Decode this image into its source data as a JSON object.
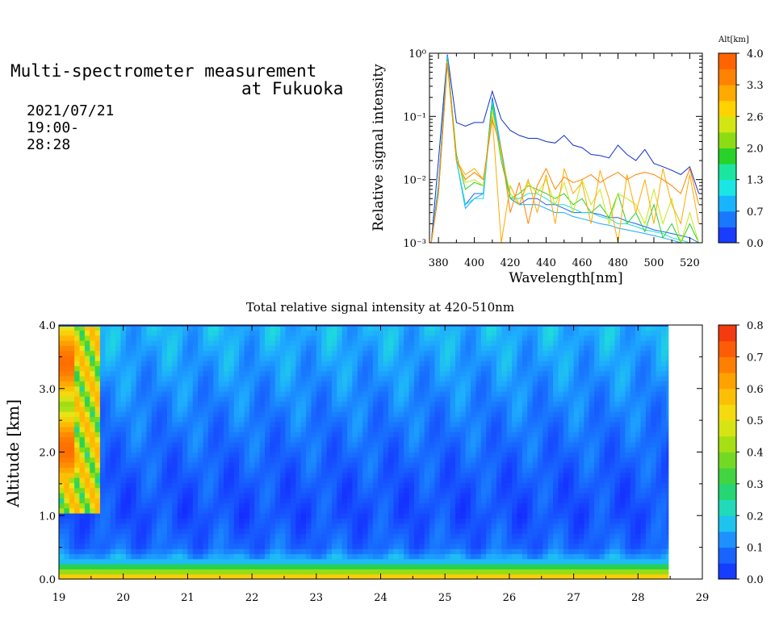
{
  "header": {
    "title_line1": "Multi-spectrometer measurement",
    "title_line2": "at Fukuoka",
    "timestamp": "2021/07/21 19:00-28:28"
  },
  "chart_data": [
    {
      "type": "line",
      "title": "",
      "xlabel": "Wavelength[nm]",
      "ylabel": "Relative signal intensity",
      "xlim": [
        375,
        527
      ],
      "ylim": [
        0.001,
        1
      ],
      "yscale": "log",
      "x_ticks": [
        "380",
        "400",
        "420",
        "440",
        "460",
        "480",
        "500",
        "520"
      ],
      "y_ticks": [
        "10⁻³",
        "10⁻²",
        "10⁻¹",
        "10⁰"
      ],
      "grid": false,
      "colorbar": {
        "title": "Alt[km]",
        "ticks": [
          "0.0",
          "0.7",
          "1.3",
          "2.0",
          "2.6",
          "3.3",
          "4.0"
        ],
        "colors": [
          "#1a3cff",
          "#1a78ff",
          "#19b4ff",
          "#1ae6e6",
          "#1ae6a0",
          "#28d228",
          "#8cdc14",
          "#d2e614",
          "#ffd200",
          "#ffaa00",
          "#ff8200",
          "#ff6400"
        ]
      },
      "x": [
        376,
        380,
        385,
        390,
        395,
        400,
        405,
        410,
        415,
        420,
        425,
        430,
        435,
        440,
        445,
        450,
        455,
        460,
        465,
        470,
        475,
        480,
        485,
        490,
        495,
        500,
        505,
        510,
        515,
        520,
        525
      ],
      "series": [
        {
          "color": "#1030c8",
          "values": [
            0.001,
            0.02,
            0.95,
            0.08,
            0.07,
            0.08,
            0.08,
            0.25,
            0.09,
            0.06,
            0.05,
            0.045,
            0.045,
            0.04,
            0.038,
            0.05,
            0.035,
            0.032,
            0.025,
            0.024,
            0.022,
            0.035,
            0.025,
            0.02,
            0.03,
            0.018,
            0.016,
            0.014,
            0.012,
            0.016,
            0.006
          ]
        },
        {
          "color": "#1a60ff",
          "values": [
            0.001,
            0.008,
            0.95,
            0.02,
            0.004,
            0.006,
            0.006,
            0.2,
            0.03,
            0.005,
            0.004,
            0.005,
            0.005,
            0.004,
            0.004,
            0.0035,
            0.003,
            0.003,
            0.003,
            0.0028,
            0.0025,
            0.0025,
            0.0022,
            0.002,
            0.0018,
            0.0016,
            0.0015,
            0.0014,
            0.0013,
            0.0012,
            0.001
          ]
        },
        {
          "color": "#19a8ff",
          "values": [
            0.001,
            0.008,
            0.9,
            0.02,
            0.0035,
            0.005,
            0.006,
            0.18,
            0.025,
            0.005,
            0.004,
            0.004,
            0.004,
            0.0035,
            0.003,
            0.003,
            0.0026,
            0.0024,
            0.0022,
            0.002,
            0.0019,
            0.0017,
            0.0016,
            0.0015,
            0.0014,
            0.0013,
            0.0012,
            0.0011,
            0.001,
            0.001,
            0.001
          ]
        },
        {
          "color": "#1ae0e0",
          "values": [
            0.001,
            0.007,
            0.85,
            0.02,
            0.004,
            0.005,
            0.005,
            0.17,
            0.03,
            0.005,
            0.005,
            0.006,
            0.006,
            0.005,
            0.004,
            0.004,
            0.0035,
            0.003,
            0.003,
            0.0026,
            0.0024,
            0.002,
            0.002,
            0.0018,
            0.0016,
            0.0015,
            0.0014,
            0.0012,
            0.0011,
            0.001,
            0.001
          ]
        },
        {
          "color": "#28d228",
          "values": [
            0.001,
            0.006,
            0.8,
            0.025,
            0.007,
            0.009,
            0.008,
            0.15,
            0.02,
            0.005,
            0.006,
            0.008,
            0.007,
            0.006,
            0.005,
            0.006,
            0.004,
            0.005,
            0.003,
            0.004,
            0.0025,
            0.006,
            0.002,
            0.003,
            0.0015,
            0.004,
            0.0012,
            0.002,
            0.001,
            0.002,
            0.001
          ]
        },
        {
          "color": "#c8e614",
          "values": [
            0.001,
            0.006,
            0.75,
            0.02,
            0.009,
            0.01,
            0.008,
            0.12,
            0.025,
            0.006,
            0.004,
            0.009,
            0.006,
            0.01,
            0.004,
            0.009,
            0.003,
            0.01,
            0.004,
            0.007,
            0.002,
            0.006,
            0.005,
            0.004,
            0.002,
            0.007,
            0.002,
            0.005,
            0.001,
            0.003,
            0.001
          ]
        },
        {
          "color": "#ffaa00",
          "values": [
            0.001,
            0.006,
            0.7,
            0.02,
            0.012,
            0.015,
            0.01,
            0.1,
            0.001,
            0.008,
            0.004,
            0.01,
            0.003,
            0.012,
            0.002,
            0.015,
            0.006,
            0.009,
            0.002,
            0.014,
            0.005,
            0.001,
            0.012,
            0.003,
            0.01,
            0.002,
            0.015,
            0.004,
            0.002,
            0.012,
            0.002
          ]
        },
        {
          "color": "#ff8200",
          "values": [
            0.001,
            0.006,
            0.7,
            0.02,
            0.01,
            0.013,
            0.01,
            0.09,
            0.03,
            0.003,
            0.009,
            0.002,
            0.008,
            0.015,
            0.007,
            0.011,
            0.009,
            0.01,
            0.012,
            0.009,
            0.011,
            0.013,
            0.01,
            0.012,
            0.013,
            0.012,
            0.01,
            0.008,
            0.006,
            0.015,
            0.004
          ]
        }
      ]
    },
    {
      "type": "heatmap",
      "title": "Total relative signal intensity at 420-510nm",
      "xlabel": "",
      "ylabel": "Altitude [km]",
      "xlim": [
        19,
        29
      ],
      "ylim": [
        0.0,
        4.0
      ],
      "x_ticks": [
        "19",
        "20",
        "21",
        "22",
        "23",
        "24",
        "25",
        "26",
        "27",
        "28",
        "29"
      ],
      "y_ticks": [
        "0.0",
        "1.0",
        "2.0",
        "3.0",
        "4.0"
      ],
      "data_x_range": [
        19.0,
        28.47
      ],
      "colorbar": {
        "ticks": [
          "0.0",
          "0.1",
          "0.2",
          "0.3",
          "0.4",
          "0.5",
          "0.6",
          "0.7",
          "0.8"
        ],
        "range": [
          0.0,
          0.8
        ]
      },
      "altitude_profile": [
        {
          "alt": 0.1,
          "value": 0.55
        },
        {
          "alt": 0.15,
          "value": 0.2
        },
        {
          "alt": 0.2,
          "value": 0.3
        },
        {
          "alt": 0.25,
          "value": 0.18
        },
        {
          "alt": 0.3,
          "value": 0.16
        },
        {
          "alt": 0.5,
          "value": 0.08
        },
        {
          "alt": 1.0,
          "value": 0.05
        },
        {
          "alt": 1.5,
          "value": 0.06
        },
        {
          "alt": 2.0,
          "value": 0.08
        },
        {
          "alt": 2.5,
          "value": 0.1
        },
        {
          "alt": 3.0,
          "value": 0.12
        },
        {
          "alt": 3.5,
          "value": 0.14
        },
        {
          "alt": 4.0,
          "value": 0.16
        }
      ],
      "early_cloud": {
        "time_range": [
          19.0,
          19.6
        ],
        "alt_range": [
          1.0,
          4.0
        ],
        "value": 0.7
      }
    }
  ]
}
